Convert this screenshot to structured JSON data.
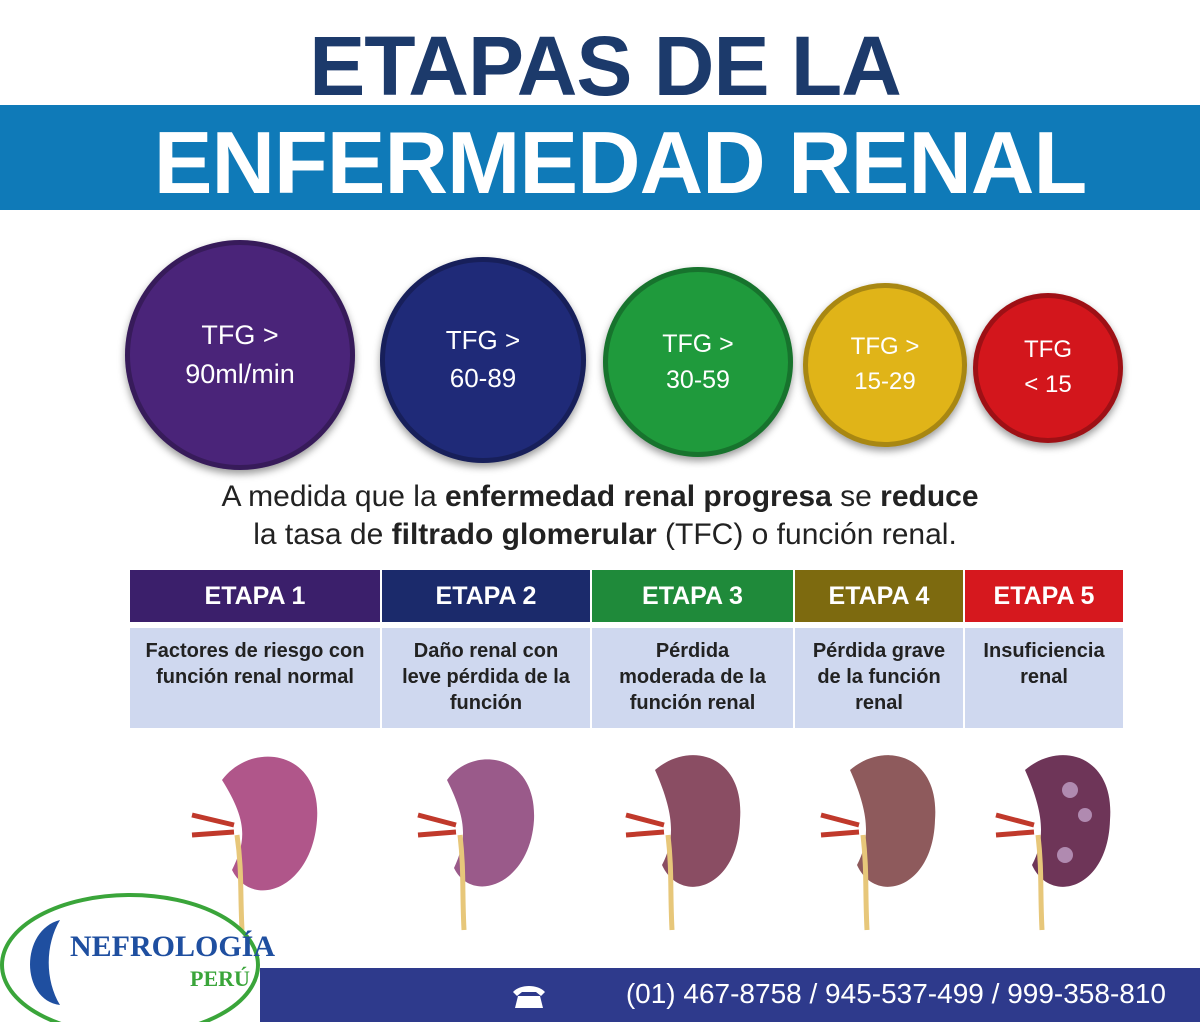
{
  "header": {
    "line1": "ETAPAS DE LA",
    "line2": "ENFERMEDAD RENAL"
  },
  "circles": [
    {
      "line1": "TFG >",
      "line2": "90ml/min",
      "color": "#4a2479"
    },
    {
      "line1": "TFG >",
      "line2": "60-89",
      "color": "#1f2a78"
    },
    {
      "line1": "TFG >",
      "line2": "30-59",
      "color": "#1f9a3c"
    },
    {
      "line1": "TFG >",
      "line2": "15-29",
      "color": "#e0b418"
    },
    {
      "line1": "TFG",
      "line2": "< 15",
      "color": "#d3161c"
    }
  ],
  "description": {
    "lines": [
      [
        {
          "text": "A medida que la ",
          "bold": false
        },
        {
          "text": "enfermedad renal progresa",
          "bold": true
        },
        {
          "text": " se ",
          "bold": false
        },
        {
          "text": "reduce",
          "bold": true
        }
      ],
      [
        {
          "text": "la tasa de ",
          "bold": false
        },
        {
          "text": "filtrado glomerular",
          "bold": true
        },
        {
          "text": " (TFC) o función renal.",
          "bold": false
        }
      ]
    ]
  },
  "stages": [
    {
      "title": "ETAPA 1",
      "description": "Factores de riesgo con función renal normal",
      "color": "#3b1f6b"
    },
    {
      "title": "ETAPA 2",
      "description": "Daño renal con leve pérdida de la función",
      "color": "#1b2a6b"
    },
    {
      "title": "ETAPA 3",
      "description": "Pérdida moderada de la función renal",
      "color": "#1f8a3a"
    },
    {
      "title": "ETAPA 4",
      "description": "Pérdida grave de la función renal",
      "color": "#7d6a0f"
    },
    {
      "title": "ETAPA 5",
      "description": "Insuficiencia renal",
      "color": "#d6181e"
    }
  ],
  "footer": {
    "logo_line1": "NEFROLOGÍA",
    "logo_line2": "PERÚ",
    "phones": "(01) 467-8758 / 945-537-499 / 999-358-810"
  }
}
